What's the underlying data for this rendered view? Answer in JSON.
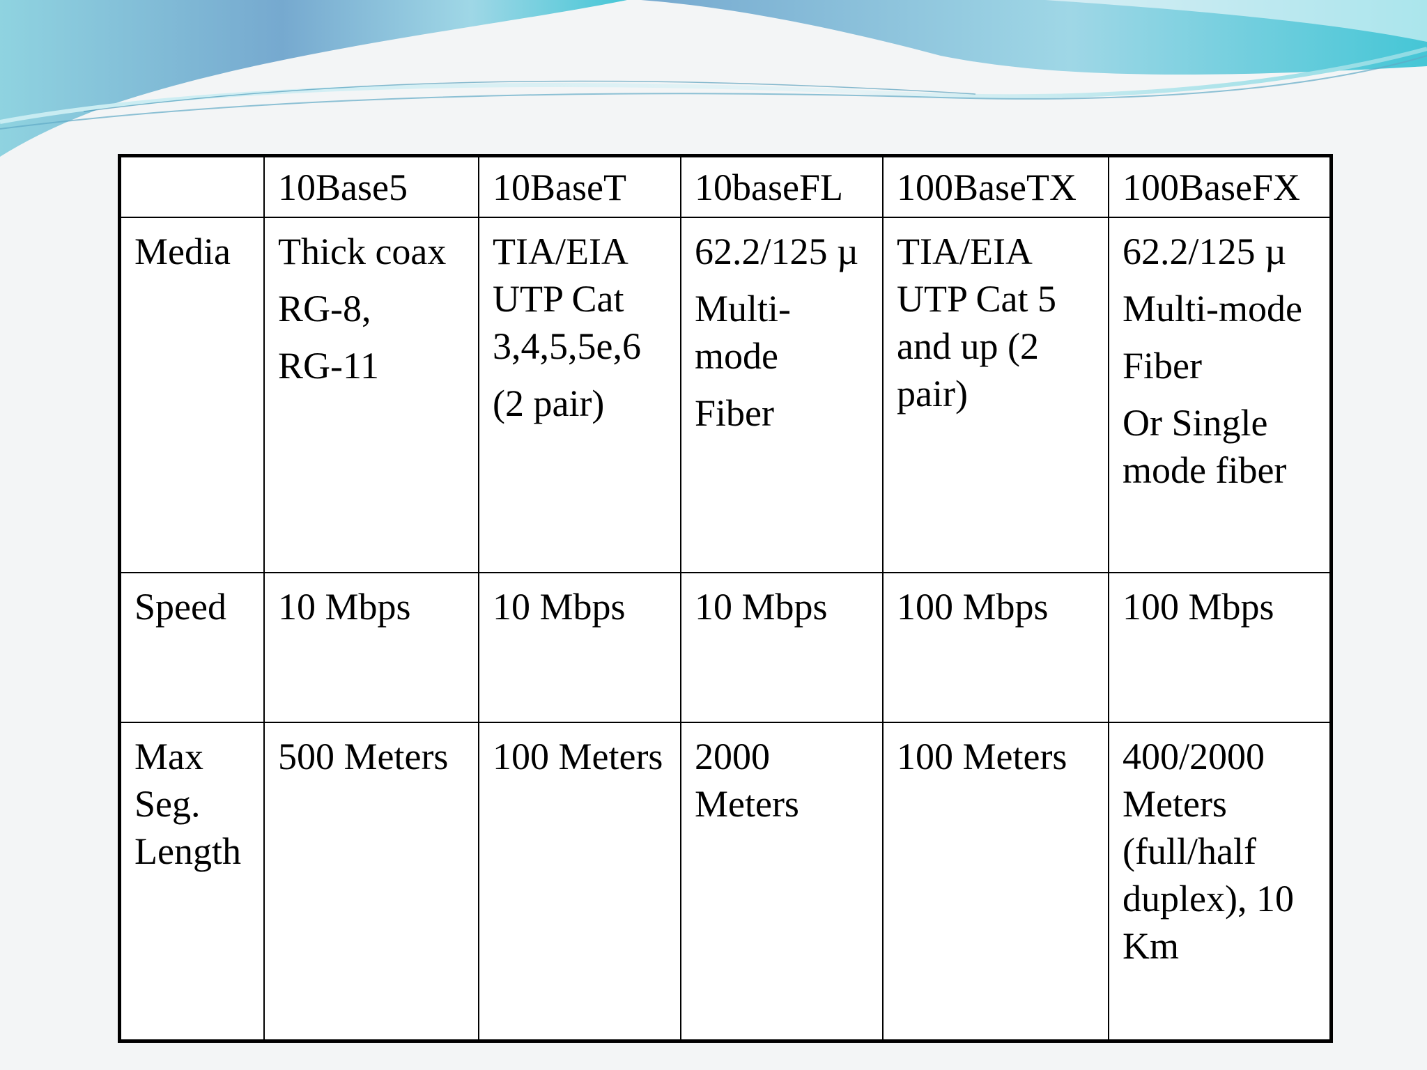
{
  "table": {
    "columns": [
      "",
      "10Base5",
      "10BaseT",
      "10baseFL",
      "100BaseTX",
      "100BaseFX"
    ],
    "rows": [
      {
        "label": "Media",
        "cells": [
          [
            "Thick coax",
            "RG-8,",
            "RG-11"
          ],
          [
            "TIA/EIA UTP Cat 3,4,5,5e,6",
            "(2 pair)"
          ],
          [
            "62.2/125 µ",
            "Multi-mode",
            "Fiber"
          ],
          [
            "TIA/EIA UTP Cat 5 and up (2 pair)"
          ],
          [
            "62.2/125 µ",
            "Multi-mode",
            "Fiber",
            "Or Single mode fiber"
          ]
        ]
      },
      {
        "label": "Speed",
        "cells": [
          [
            "10 Mbps"
          ],
          [
            "10 Mbps"
          ],
          [
            "10 Mbps"
          ],
          [
            "100 Mbps"
          ],
          [
            "100 Mbps"
          ]
        ]
      },
      {
        "label": "Max Seg. Length",
        "cells": [
          [
            "500 Meters"
          ],
          [
            "100 Meters"
          ],
          [
            "2000 Meters"
          ],
          [
            "100 Meters"
          ],
          [
            "400/2000 Meters (full/half duplex), 10 Km"
          ]
        ]
      }
    ]
  }
}
